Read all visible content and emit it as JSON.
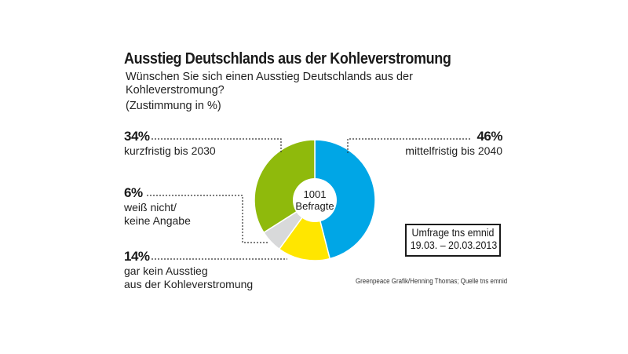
{
  "chart_data": {
    "type": "pie",
    "style": "donut",
    "title": "Ausstieg Deutschlands aus der Kohleverstromung",
    "subtitle": "Wünschen Sie sich einen Ausstieg Deutschlands aus der Kohleverstromung?",
    "unit_note": "(Zustimmung in %)",
    "center_label": [
      "1001",
      "Befragte"
    ],
    "slices": [
      {
        "name": "mittelfristig bis 2040",
        "value": 46,
        "label": "46%",
        "color": "#00a6e6"
      },
      {
        "name": "gar kein Ausstieg aus der Kohleverstromung",
        "value": 14,
        "label": "14%",
        "color": "#ffe600"
      },
      {
        "name": "weiß nicht/ keine Angabe",
        "value": 6,
        "label": "6%",
        "color": "#d8d9da"
      },
      {
        "name": "kurzfristig bis 2030",
        "value": 34,
        "label": "34%",
        "color": "#8fba0c"
      }
    ],
    "start_angle": "top, clockwise"
  },
  "labels": {
    "s46": {
      "pct": "46%",
      "lines": [
        "mittelfristig bis 2040"
      ]
    },
    "s34": {
      "pct": "34%",
      "lines": [
        "kurzfristig bis 2030"
      ]
    },
    "s6": {
      "pct": "6%",
      "lines": [
        "weiß nicht/",
        "keine Angabe"
      ]
    },
    "s14": {
      "pct": "14%",
      "lines": [
        "gar kein Ausstieg",
        "aus der Kohleverstromung"
      ]
    }
  },
  "survey_box": {
    "line1": "Umfrage tns emnid",
    "line2": "19.03. – 20.03.2013"
  },
  "credit": "Greenpeace Grafik/Henning Thomas; Quelle tns emnid"
}
